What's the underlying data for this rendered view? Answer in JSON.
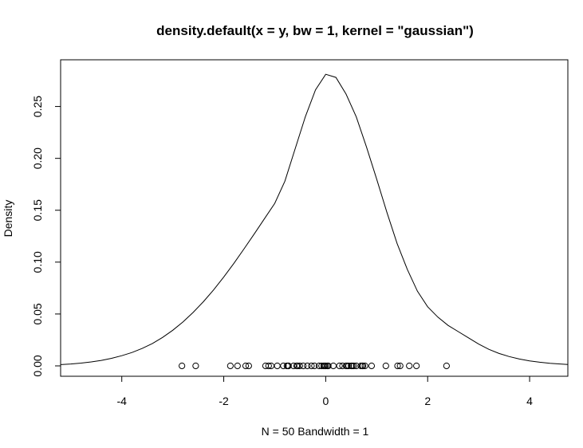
{
  "chart_data": {
    "type": "line",
    "title": "density.default(x = y, bw = 1, kernel = \"gaussian\")",
    "xlabel": "N = 50   Bandwidth = 1",
    "ylabel": "Density",
    "xlim": [
      -5.2,
      4.75
    ],
    "ylim": [
      -0.01,
      0.295
    ],
    "grid": false,
    "x_ticks": [
      -4,
      -2,
      0,
      2,
      4
    ],
    "y_ticks": [
      0.0,
      0.05,
      0.1,
      0.15,
      0.2,
      0.25
    ],
    "x_tick_labels": [
      "-4",
      "-2",
      "0",
      "2",
      "4"
    ],
    "y_tick_labels": [
      "0.00",
      "0.05",
      "0.10",
      "0.15",
      "0.20",
      "0.25"
    ],
    "rug_points": [
      -2.82,
      -2.55,
      -1.87,
      -1.73,
      -1.57,
      -1.51,
      -1.18,
      -1.12,
      -1.07,
      -0.95,
      -0.83,
      -0.76,
      -0.73,
      -0.63,
      -0.57,
      -0.51,
      -0.44,
      -0.36,
      -0.28,
      -0.22,
      -0.13,
      -0.08,
      -0.04,
      0.0,
      0.03,
      0.15,
      0.27,
      0.33,
      0.4,
      0.45,
      0.5,
      0.55,
      0.6,
      0.69,
      0.73,
      0.77,
      0.9,
      1.18,
      1.41,
      1.46,
      1.64,
      1.78,
      2.37,
      -0.02,
      0.05,
      0.42,
      0.52,
      -0.74,
      -0.55,
      0.72
    ],
    "series": [
      {
        "x": [
          -5.2,
          -5.0,
          -4.8,
          -4.6,
          -4.4,
          -4.2,
          -4.0,
          -3.8,
          -3.6,
          -3.4,
          -3.2,
          -3.0,
          -2.8,
          -2.6,
          -2.4,
          -2.2,
          -2.0,
          -1.8,
          -1.6,
          -1.4,
          -1.2,
          -1.0,
          -0.8,
          -0.6,
          -0.4,
          -0.2,
          0.0,
          0.2,
          0.4,
          0.6,
          0.8,
          1.0,
          1.2,
          1.4,
          1.6,
          1.8,
          2.0,
          2.2,
          2.4,
          2.6,
          2.8,
          3.0,
          3.2,
          3.4,
          3.6,
          3.8,
          4.0,
          4.2,
          4.4,
          4.6,
          4.75
        ],
        "y": [
          0.0012,
          0.0018,
          0.0027,
          0.0038,
          0.0053,
          0.0073,
          0.0098,
          0.0129,
          0.0168,
          0.0216,
          0.0274,
          0.0343,
          0.0423,
          0.0515,
          0.0618,
          0.0732,
          0.0856,
          0.0989,
          0.1129,
          0.1273,
          0.142,
          0.1566,
          0.178,
          0.209,
          0.24,
          0.266,
          0.281,
          0.278,
          0.262,
          0.24,
          0.211,
          0.18,
          0.148,
          0.118,
          0.093,
          0.072,
          0.057,
          0.047,
          0.039,
          0.033,
          0.027,
          0.021,
          0.016,
          0.012,
          0.009,
          0.0066,
          0.0048,
          0.0035,
          0.0025,
          0.0018,
          0.0014
        ]
      }
    ]
  }
}
